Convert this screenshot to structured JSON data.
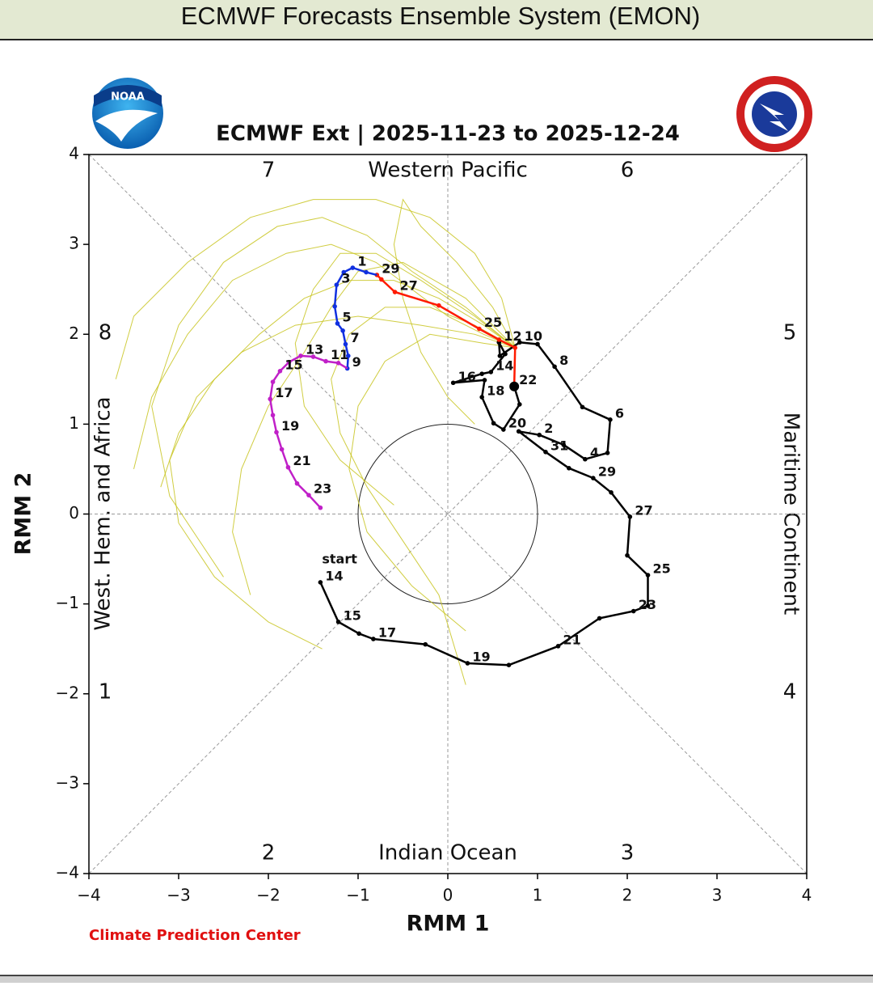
{
  "header": {
    "title": "ECMWF Forecasts Ensemble System (EMON)"
  },
  "chart_data": {
    "type": "line",
    "title": "ECMWF Ext | 2025-11-23 to 2025-12-24",
    "xlabel": "RMM 1",
    "ylabel": "RMM 2",
    "credit": "Climate Prediction Center",
    "logo_text": "NOAA",
    "start_label": "start",
    "regions": {
      "top": "Western Pacific",
      "bottom": "Indian Ocean",
      "left": "West. Hem. and Africa",
      "right": "Maritime Continent"
    },
    "phase_labels": [
      "1",
      "2",
      "3",
      "4",
      "5",
      "6",
      "7",
      "8"
    ],
    "xlim": [
      -4,
      4
    ],
    "ylim": [
      -4,
      4
    ],
    "xticks": [
      {
        "value": -4,
        "label": "−4"
      },
      {
        "value": -3,
        "label": "−3"
      },
      {
        "value": -2,
        "label": "−2"
      },
      {
        "value": -1,
        "label": "−1"
      },
      0,
      1,
      2,
      3,
      4
    ],
    "yticks": [
      {
        "value": -4,
        "label": "−4"
      },
      {
        "value": -3,
        "label": "−3"
      },
      {
        "value": -2,
        "label": "−2"
      },
      {
        "value": -1,
        "label": "−1"
      },
      0,
      1,
      2,
      3,
      4
    ],
    "ensemble_color": "#c8c420",
    "ensemble": [
      {
        "x": [
          0.75,
          0.4,
          -0.1,
          -0.6,
          -1.1,
          -1.6,
          -2.1,
          -2.6,
          -3.0,
          -3.2
        ],
        "y": [
          1.85,
          2.1,
          2.4,
          2.6,
          2.6,
          2.4,
          2.0,
          1.5,
          0.9,
          0.3
        ]
      },
      {
        "x": [
          0.75,
          0.3,
          -0.3,
          -0.8,
          -1.2,
          -1.5,
          -1.7,
          -1.6,
          -1.2,
          -0.6
        ],
        "y": [
          1.85,
          2.2,
          2.6,
          2.9,
          2.9,
          2.5,
          1.9,
          1.2,
          0.6,
          0.1
        ]
      },
      {
        "x": [
          0.75,
          0.4,
          0,
          -0.4,
          -0.8,
          -1.3,
          -1.8,
          -2.4,
          -2.9,
          -3.3,
          -3.5
        ],
        "y": [
          1.85,
          2.0,
          2.2,
          2.5,
          2.8,
          3.0,
          2.9,
          2.6,
          2.0,
          1.3,
          0.5
        ]
      },
      {
        "x": [
          0.75,
          0.3,
          -0.2,
          -0.7,
          -1.1,
          -1.3,
          -1.2,
          -0.9,
          -0.5,
          -0.1,
          0.2
        ],
        "y": [
          1.85,
          2.1,
          2.3,
          2.3,
          2.0,
          1.5,
          0.9,
          0.3,
          -0.3,
          -0.9,
          -1.9
        ]
      },
      {
        "x": [
          0.75,
          0.2,
          -0.4,
          -0.9,
          -1.4,
          -1.9,
          -2.5,
          -3.0,
          -3.3,
          -3.1,
          -2.5
        ],
        "y": [
          1.85,
          2.3,
          2.7,
          3.1,
          3.3,
          3.2,
          2.8,
          2.1,
          1.2,
          0.2,
          -0.7
        ]
      },
      {
        "x": [
          0.75,
          0.5,
          0.1,
          -0.3,
          -0.5,
          -0.6,
          -0.5,
          -0.3,
          0,
          0.3
        ],
        "y": [
          1.85,
          2.3,
          2.8,
          3.2,
          3.5,
          3.0,
          2.4,
          1.8,
          1.3,
          1.0
        ]
      },
      {
        "x": [
          0.75,
          0.3,
          -0.3,
          -1.0,
          -1.7,
          -2.3,
          -2.8,
          -3.1,
          -3.0,
          -2.6,
          -2.0,
          -1.4
        ],
        "y": [
          1.85,
          2.0,
          2.1,
          2.2,
          2.1,
          1.8,
          1.3,
          0.6,
          -0.1,
          -0.7,
          -1.2,
          -1.5
        ]
      },
      {
        "x": [
          0.75,
          0.2,
          -0.5,
          -1.0,
          -1.3,
          -1.6,
          -2.0,
          -2.3,
          -2.4,
          -2.2
        ],
        "y": [
          1.85,
          2.4,
          2.8,
          2.7,
          2.3,
          1.8,
          1.2,
          0.5,
          -0.2,
          -0.9
        ]
      },
      {
        "x": [
          0.75,
          0.6,
          0.3,
          -0.2,
          -0.8,
          -1.5,
          -2.2,
          -2.9,
          -3.5,
          -3.7
        ],
        "y": [
          1.85,
          2.4,
          2.9,
          3.3,
          3.5,
          3.5,
          3.3,
          2.8,
          2.2,
          1.5
        ]
      },
      {
        "x": [
          0.75,
          0.4,
          -0.2,
          -0.7,
          -1.0,
          -1.1,
          -0.9,
          -0.4,
          0.2
        ],
        "y": [
          1.85,
          1.9,
          2.0,
          1.7,
          1.2,
          0.5,
          -0.2,
          -0.8,
          -1.3
        ]
      }
    ],
    "series": [
      {
        "color": "#000000",
        "x": [
          -1.42,
          -1.22,
          -0.99,
          -0.83,
          -0.25,
          0.22,
          0.68,
          1.23,
          1.69,
          2.07,
          2.23,
          2.23,
          2.0,
          2.03,
          1.82,
          1.62,
          1.35,
          1.09,
          0.79,
          1.02,
          1.29,
          1.53,
          1.78,
          1.81,
          1.5,
          1.19,
          1.0,
          0.8,
          0.58,
          0.57,
          0.64,
          0.48,
          0.38,
          0.06,
          0.41,
          0.38,
          0.51,
          0.62,
          0.8,
          0.74
        ],
        "y": [
          -0.76,
          -1.2,
          -1.33,
          -1.39,
          -1.45,
          -1.66,
          -1.68,
          -1.47,
          -1.16,
          -1.08,
          -1.02,
          -0.68,
          -0.46,
          -0.03,
          0.24,
          0.4,
          0.51,
          0.69,
          0.92,
          0.88,
          0.77,
          0.61,
          0.68,
          1.05,
          1.19,
          1.64,
          1.89,
          1.91,
          1.76,
          1.91,
          1.78,
          1.58,
          1.56,
          1.46,
          1.49,
          1.3,
          1.01,
          0.94,
          1.22,
          1.42
        ],
        "labels": [
          "14",
          "15",
          null,
          "17",
          null,
          "19",
          null,
          "21",
          null,
          "23",
          null,
          "25",
          null,
          "27",
          null,
          "29",
          null,
          "31",
          null,
          "2",
          null,
          "4",
          null,
          "6",
          null,
          "8",
          null,
          "10",
          null,
          "12",
          null,
          "14",
          null,
          "16",
          null,
          "18",
          null,
          "20",
          null,
          "22"
        ]
      },
      {
        "color": "#ff1a00",
        "x": [
          0.75,
          0.57,
          0.35,
          -0.1,
          -0.59,
          -0.74,
          -0.79
        ],
        "y": [
          1.85,
          1.94,
          2.06,
          2.32,
          2.47,
          2.61,
          2.66
        ],
        "labels": [
          null,
          null,
          "25",
          null,
          "27",
          null,
          "29"
        ]
      },
      {
        "color": "#1030e0",
        "x": [
          -0.91,
          -1.06,
          -1.16,
          -1.24,
          -1.26,
          -1.23,
          -1.17,
          -1.14,
          -1.11,
          -1.12
        ],
        "y": [
          2.69,
          2.74,
          2.69,
          2.55,
          2.31,
          2.12,
          2.04,
          1.89,
          1.76,
          1.62
        ],
        "labels": [
          null,
          "1",
          null,
          "3",
          null,
          "5",
          null,
          "7",
          null,
          "9"
        ]
      },
      {
        "color": "#c020c8",
        "x": [
          -1.22,
          -1.36,
          -1.5,
          -1.64,
          -1.77,
          -1.87,
          -1.95,
          -1.98,
          -1.95,
          -1.91,
          -1.85,
          -1.78,
          -1.68,
          -1.55,
          -1.42
        ],
        "y": [
          1.68,
          1.7,
          1.75,
          1.76,
          1.69,
          1.59,
          1.47,
          1.28,
          1.1,
          0.91,
          0.72,
          0.52,
          0.34,
          0.21,
          0.07
        ],
        "labels": [
          null,
          "11",
          null,
          "13",
          null,
          "15",
          null,
          "17",
          null,
          "19",
          null,
          "21",
          null,
          "23",
          null
        ]
      }
    ]
  }
}
